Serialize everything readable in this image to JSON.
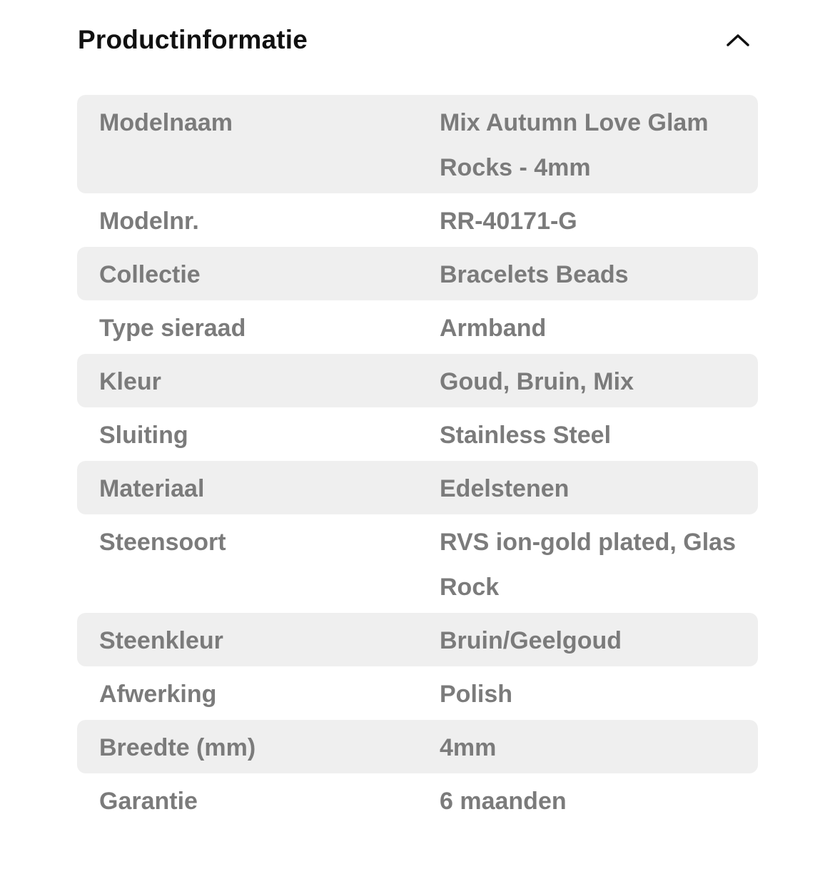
{
  "header": {
    "title": "Productinformatie",
    "toggle_icon": "chevron-up-icon"
  },
  "colors": {
    "shaded_row": "#efefef",
    "text": "#7b7b7b",
    "title": "#111111"
  },
  "rows": [
    {
      "label": "Modelnaam",
      "value": "Mix Autumn Love Glam Rocks - 4mm"
    },
    {
      "label": "Modelnr.",
      "value": "RR-40171-G"
    },
    {
      "label": "Collectie",
      "value": "Bracelets Beads"
    },
    {
      "label": "Type sieraad",
      "value": "Armband"
    },
    {
      "label": "Kleur",
      "value": "Goud, Bruin, Mix"
    },
    {
      "label": "Sluiting",
      "value": "Stainless Steel"
    },
    {
      "label": "Materiaal",
      "value": "Edelstenen"
    },
    {
      "label": "Steensoort",
      "value": "RVS ion-gold plated, Glas Rock"
    },
    {
      "label": "Steenkleur",
      "value": "Bruin/Geelgoud"
    },
    {
      "label": "Afwerking",
      "value": "Polish"
    },
    {
      "label": "Breedte (mm)",
      "value": "4mm"
    },
    {
      "label": "Garantie",
      "value": "6 maanden"
    }
  ]
}
